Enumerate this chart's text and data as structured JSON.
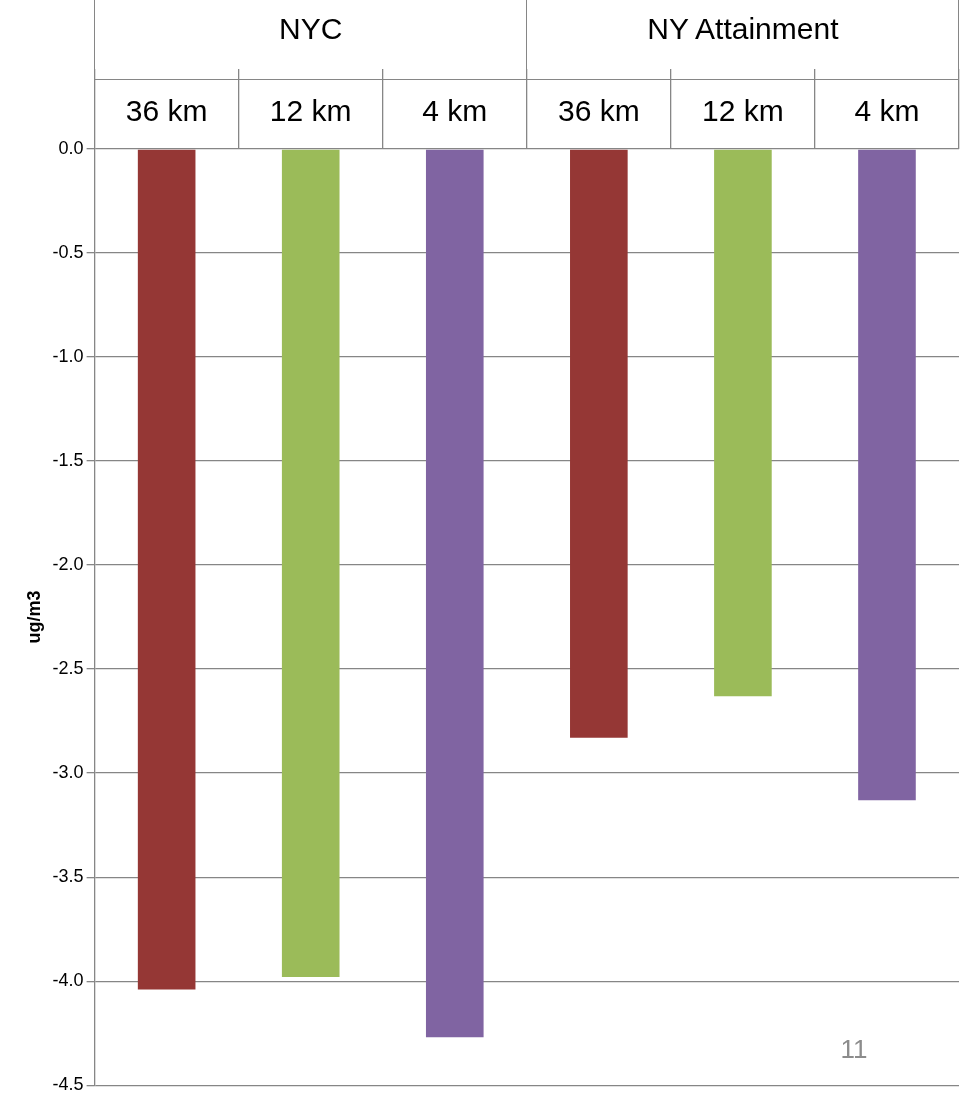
{
  "chart_data": {
    "type": "bar",
    "ylabel": "ug/m3",
    "categories": [
      "36 km",
      "12 km",
      "4 km",
      "36 km",
      "12 km",
      "4 km"
    ],
    "values": [
      -4.04,
      -3.98,
      -4.27,
      -2.83,
      -2.63,
      -3.13
    ],
    "colors": [
      "#953735",
      "#9bbb59",
      "#8064a2",
      "#953735",
      "#9bbb59",
      "#8064a2"
    ],
    "ylim": [
      -4.5,
      0
    ],
    "yticks": [
      {
        "value": 0,
        "label": "0.0"
      },
      {
        "value": -0.5,
        "label": "-0.5"
      },
      {
        "value": -1,
        "label": "-1.0"
      },
      {
        "value": -1.5,
        "label": "-1.5"
      },
      {
        "value": -2,
        "label": "-2.0"
      },
      {
        "value": -2.5,
        "label": "-2.5"
      },
      {
        "value": -3,
        "label": "-3.0"
      },
      {
        "value": -3.5,
        "label": "-3.5"
      },
      {
        "value": -4,
        "label": "-4.0"
      },
      {
        "value": -4.5,
        "label": "-4.5"
      }
    ],
    "grid": "y",
    "legend": false,
    "annotations": [
      "NYC",
      "NY Attainment",
      "11"
    ]
  }
}
